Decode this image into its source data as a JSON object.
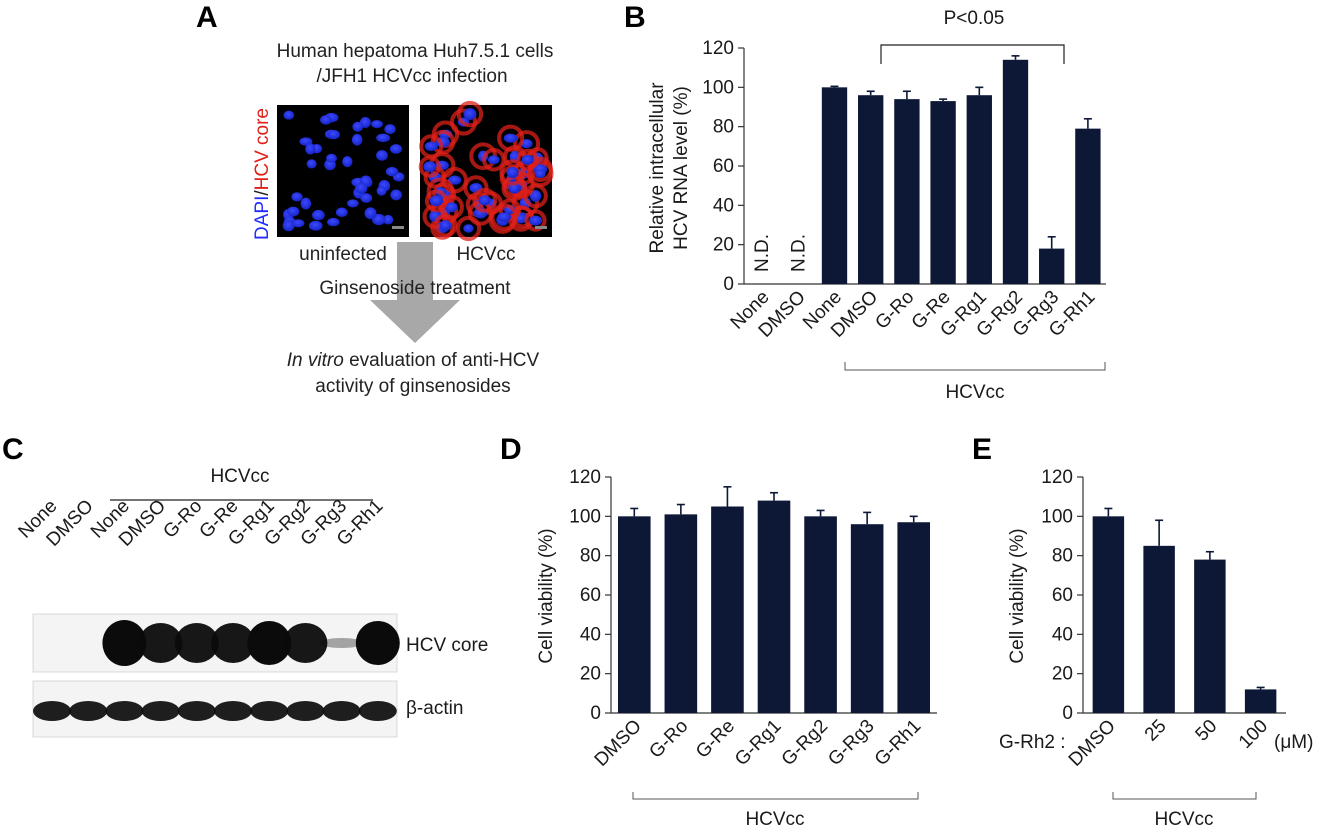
{
  "panels": {
    "a": {
      "letter": "A",
      "header_line1": "Human hepatoma Huh7.5.1 cells",
      "header_line2": "/JFH1 HCVcc infection",
      "stain_label_part1": "DAPI",
      "stain_label_sep": "/",
      "stain_label_part2": "HCV core",
      "image_label_left": "uninfected",
      "image_label_right": "HCVcc",
      "treatment": "Ginsenoside treatment",
      "evaluation_italic": "In vitro",
      "evaluation_rest": " evaluation of anti-HCV",
      "evaluation_line2": "activity of ginsenosides"
    },
    "b": {
      "letter": "B",
      "significance": "P<0.05",
      "group_label": "HCVcc",
      "nd_label": "N.D."
    },
    "c": {
      "letter": "C",
      "group_label": "HCVcc",
      "lanes": [
        "None",
        "DMSO",
        "None",
        "DMSO",
        "G-Ro",
        "G-Re",
        "G-Rg1",
        "G-Rg2",
        "G-Rg3",
        "G-Rh1"
      ],
      "blot_top_label": "HCV core",
      "blot_bottom_label": "β-actin"
    },
    "d": {
      "letter": "D",
      "group_label": "HCVcc"
    },
    "e": {
      "letter": "E",
      "group_label": "HCVcc",
      "treatment_prefix": "G-Rh2 :",
      "unit_suffix": "(μM)"
    }
  },
  "colors": {
    "bar": "#0d1836",
    "dapi": "#1f2bff",
    "hcv_core": "#e0201a",
    "arrow": "#a8a8a8",
    "blot_band": "#0b0b0b"
  },
  "chart_data": [
    {
      "panel": "B",
      "type": "bar",
      "categories": [
        "None",
        "DMSO",
        "None",
        "DMSO",
        "G-Ro",
        "G-Re",
        "G-Rg1",
        "G-Rg2",
        "G-Rg3",
        "G-Rh1"
      ],
      "values": [
        null,
        null,
        100,
        96,
        94,
        93,
        96,
        114,
        18,
        79
      ],
      "errors": [
        0,
        0,
        0.5,
        2,
        4,
        1,
        4,
        2,
        6,
        5
      ],
      "ylabel_line1": "Relative intracellular",
      "ylabel_line2": "HCV RNA level (%)",
      "xlabel": "",
      "ylim": [
        0,
        120
      ],
      "yticks": [
        0,
        20,
        40,
        60,
        80,
        100,
        120
      ],
      "grid": false
    },
    {
      "panel": "D",
      "type": "bar",
      "categories": [
        "DMSO",
        "G-Ro",
        "G-Re",
        "G-Rg1",
        "G-Rg2",
        "G-Rg3",
        "G-Rh1"
      ],
      "values": [
        100,
        101,
        105,
        108,
        100,
        96,
        97
      ],
      "errors": [
        4,
        5,
        10,
        4,
        3,
        6,
        3
      ],
      "ylabel": "Cell viability (%)",
      "xlabel": "",
      "ylim": [
        0,
        120
      ],
      "yticks": [
        0,
        20,
        40,
        60,
        80,
        100,
        120
      ],
      "grid": false
    },
    {
      "panel": "E",
      "type": "bar",
      "categories": [
        "DMSO",
        "25",
        "50",
        "100"
      ],
      "values": [
        100,
        85,
        78,
        12
      ],
      "errors": [
        4,
        13,
        4,
        1
      ],
      "ylabel": "Cell viability (%)",
      "xlabel": "",
      "ylim": [
        0,
        120
      ],
      "yticks": [
        0,
        20,
        40,
        60,
        80,
        100,
        120
      ],
      "grid": false
    }
  ]
}
